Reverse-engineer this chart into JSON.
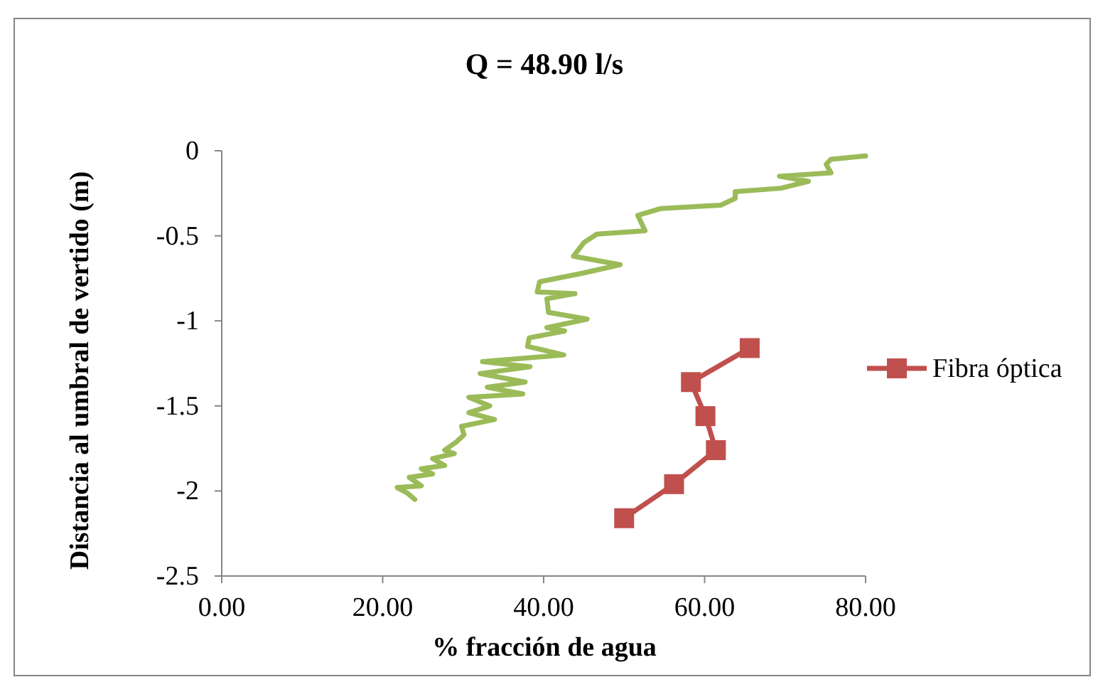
{
  "chart_data": {
    "type": "line",
    "title": "Q = 48.90 l/s",
    "xlabel": "% fracción de agua",
    "ylabel": "Distancia al umbral de vertido (m)",
    "xlim": [
      0,
      80
    ],
    "xticks": [
      {
        "value": 0,
        "label": "0.00"
      },
      {
        "value": 20,
        "label": "20.00"
      },
      {
        "value": 40,
        "label": "40.00"
      },
      {
        "value": 60,
        "label": "60.00"
      },
      {
        "value": 80,
        "label": "80.00"
      }
    ],
    "ylim": [
      -2.5,
      0
    ],
    "yticks": [
      -2.5,
      -2,
      -1.5,
      -1,
      -0.5,
      0
    ],
    "grid": false,
    "legend": "right",
    "series": [
      {
        "name": "Fibra óptica",
        "color": "#c0504d",
        "marker": "square",
        "x": [
          65.6,
          58.3,
          60.1,
          61.4,
          56.2,
          50.0
        ],
        "values": [
          -1.16,
          -1.36,
          -1.56,
          -1.76,
          -1.96,
          -2.16
        ]
      },
      {
        "color": "#9bbb59",
        "marker": "none",
        "x": [
          80.0,
          75.7,
          75.1,
          75.7,
          69.3,
          72.9,
          69.5,
          63.8,
          63.8,
          62.0,
          54.5,
          51.7,
          52.6,
          46.6,
          45.0,
          43.7,
          49.5,
          44.8,
          39.5,
          39.2,
          43.9,
          40.4,
          40.6,
          45.4,
          40.4,
          42.6,
          38.2,
          38.0,
          42.5,
          32.4,
          38.3,
          32.1,
          37.7,
          33.0,
          37.4,
          30.7,
          33.3,
          30.7,
          33.9,
          29.8,
          30.1,
          29.2,
          27.7,
          28.9,
          26.2,
          27.7,
          24.8,
          26.2,
          23.3,
          24.8,
          21.8,
          23.0,
          24.0
        ],
        "values": [
          -0.03,
          -0.05,
          -0.08,
          -0.13,
          -0.15,
          -0.18,
          -0.22,
          -0.24,
          -0.28,
          -0.32,
          -0.34,
          -0.38,
          -0.47,
          -0.49,
          -0.54,
          -0.62,
          -0.67,
          -0.72,
          -0.77,
          -0.83,
          -0.84,
          -0.87,
          -0.95,
          -0.99,
          -1.04,
          -1.06,
          -1.1,
          -1.15,
          -1.2,
          -1.24,
          -1.27,
          -1.31,
          -1.36,
          -1.39,
          -1.43,
          -1.45,
          -1.5,
          -1.54,
          -1.58,
          -1.62,
          -1.67,
          -1.71,
          -1.76,
          -1.78,
          -1.81,
          -1.85,
          -1.87,
          -1.9,
          -1.92,
          -1.97,
          -1.98,
          -2.01,
          -2.05
        ]
      }
    ]
  }
}
